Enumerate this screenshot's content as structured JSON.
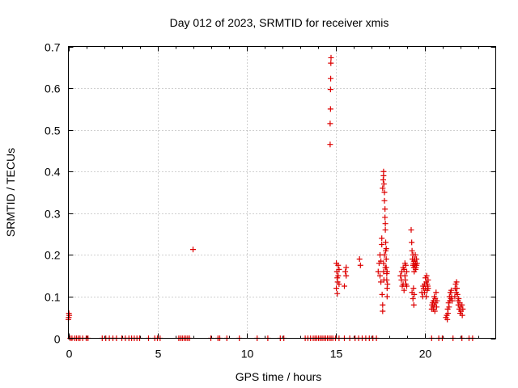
{
  "chart_data": {
    "type": "scatter",
    "title": "Day 012 of 2023, SRMTID for receiver xmis",
    "xlabel": "GPS time / hours",
    "ylabel": "SRMTID / TECUs",
    "xlim": [
      0,
      24
    ],
    "ylim": [
      0,
      0.7
    ],
    "xticks": [
      0,
      5,
      10,
      15,
      20
    ],
    "xtick_labels": [
      "0",
      "5",
      "10",
      "15",
      "20"
    ],
    "yticks": [
      0,
      0.1,
      0.2,
      0.3,
      0.4,
      0.5,
      0.6,
      0.7
    ],
    "ytick_labels": [
      "0",
      "0.1",
      "0.2",
      "0.3",
      "0.4",
      "0.5",
      "0.6",
      "0.7"
    ],
    "grid": true,
    "marker": "+",
    "color": "#dd0000",
    "series": [
      {
        "name": "SRMTID",
        "points": [
          [
            0.0,
            0.045
          ],
          [
            0.02,
            0.05
          ],
          [
            0.03,
            0.06
          ],
          [
            0.05,
            0.055
          ],
          [
            0.1,
            0.0
          ],
          [
            0.2,
            0.0
          ],
          [
            0.35,
            0.0
          ],
          [
            0.45,
            0.0
          ],
          [
            0.55,
            0.0
          ],
          [
            0.65,
            0.0
          ],
          [
            0.8,
            0.0
          ],
          [
            1.0,
            0.0
          ],
          [
            1.1,
            0.0
          ],
          [
            1.9,
            0.0
          ],
          [
            2.1,
            0.0
          ],
          [
            2.3,
            0.0
          ],
          [
            2.5,
            0.0
          ],
          [
            2.7,
            0.0
          ],
          [
            3.0,
            0.0
          ],
          [
            3.2,
            0.0
          ],
          [
            3.4,
            0.0
          ],
          [
            3.55,
            0.0
          ],
          [
            3.7,
            0.0
          ],
          [
            3.85,
            0.0
          ],
          [
            4.0,
            0.0
          ],
          [
            4.5,
            0.0
          ],
          [
            4.85,
            0.0
          ],
          [
            5.0,
            0.0
          ],
          [
            5.15,
            0.0
          ],
          [
            6.2,
            0.0
          ],
          [
            6.3,
            0.0
          ],
          [
            6.4,
            0.0
          ],
          [
            6.5,
            0.0
          ],
          [
            6.6,
            0.0
          ],
          [
            6.7,
            0.0
          ],
          [
            6.8,
            0.0
          ],
          [
            7.0,
            0.213
          ],
          [
            8.0,
            0.0
          ],
          [
            8.4,
            0.0
          ],
          [
            8.5,
            0.0
          ],
          [
            8.9,
            0.0
          ],
          [
            9.6,
            0.0
          ],
          [
            10.6,
            0.0
          ],
          [
            11.2,
            0.0
          ],
          [
            11.9,
            0.0
          ],
          [
            12.1,
            0.0
          ],
          [
            13.3,
            0.0
          ],
          [
            13.45,
            0.0
          ],
          [
            13.6,
            0.0
          ],
          [
            13.75,
            0.0
          ],
          [
            13.85,
            0.0
          ],
          [
            13.95,
            0.0
          ],
          [
            14.05,
            0.0
          ],
          [
            14.15,
            0.0
          ],
          [
            14.25,
            0.0
          ],
          [
            14.35,
            0.0
          ],
          [
            14.45,
            0.0
          ],
          [
            14.55,
            0.0
          ],
          [
            14.65,
            0.0
          ],
          [
            14.75,
            0.0
          ],
          [
            14.85,
            0.0
          ],
          [
            15.0,
            0.0
          ],
          [
            15.2,
            0.0
          ],
          [
            15.5,
            0.0
          ],
          [
            15.8,
            0.0
          ],
          [
            14.7,
            0.465
          ],
          [
            14.7,
            0.515
          ],
          [
            14.72,
            0.55
          ],
          [
            14.72,
            0.597
          ],
          [
            14.73,
            0.623
          ],
          [
            14.74,
            0.66
          ],
          [
            14.75,
            0.673
          ],
          [
            15.05,
            0.18
          ],
          [
            15.08,
            0.16
          ],
          [
            15.1,
            0.145
          ],
          [
            15.12,
            0.135
          ],
          [
            15.05,
            0.12
          ],
          [
            15.1,
            0.107
          ],
          [
            15.15,
            0.175
          ],
          [
            15.2,
            0.165
          ],
          [
            15.15,
            0.15
          ],
          [
            15.2,
            0.13
          ],
          [
            15.55,
            0.16
          ],
          [
            15.6,
            0.15
          ],
          [
            15.5,
            0.125
          ],
          [
            15.6,
            0.17
          ],
          [
            16.1,
            0.0
          ],
          [
            16.3,
            0.0
          ],
          [
            16.5,
            0.0
          ],
          [
            16.7,
            0.0
          ],
          [
            16.9,
            0.0
          ],
          [
            17.1,
            0.0
          ],
          [
            17.3,
            0.0
          ],
          [
            16.35,
            0.19
          ],
          [
            16.4,
            0.175
          ],
          [
            17.4,
            0.16
          ],
          [
            17.45,
            0.18
          ],
          [
            17.5,
            0.2
          ],
          [
            17.5,
            0.15
          ],
          [
            17.55,
            0.135
          ],
          [
            17.55,
            0.185
          ],
          [
            17.6,
            0.24
          ],
          [
            17.6,
            0.225
          ],
          [
            17.62,
            0.105
          ],
          [
            17.65,
            0.065
          ],
          [
            17.65,
            0.08
          ],
          [
            17.65,
            0.36
          ],
          [
            17.68,
            0.38
          ],
          [
            17.7,
            0.39
          ],
          [
            17.7,
            0.4
          ],
          [
            17.72,
            0.37
          ],
          [
            17.75,
            0.35
          ],
          [
            17.75,
            0.33
          ],
          [
            17.78,
            0.31
          ],
          [
            17.78,
            0.29
          ],
          [
            17.8,
            0.275
          ],
          [
            17.8,
            0.26
          ],
          [
            17.82,
            0.23
          ],
          [
            17.82,
            0.21
          ],
          [
            17.85,
            0.19
          ],
          [
            17.85,
            0.17
          ],
          [
            17.88,
            0.155
          ],
          [
            17.88,
            0.14
          ],
          [
            17.9,
            0.12
          ],
          [
            17.9,
            0.1
          ],
          [
            17.75,
            0.2
          ],
          [
            17.7,
            0.18
          ],
          [
            17.8,
            0.17
          ],
          [
            17.85,
            0.215
          ],
          [
            17.9,
            0.16
          ],
          [
            17.92,
            0.13
          ],
          [
            17.7,
            0.16
          ],
          [
            17.72,
            0.14
          ],
          [
            18.65,
            0.15
          ],
          [
            18.7,
            0.14
          ],
          [
            18.72,
            0.16
          ],
          [
            18.75,
            0.125
          ],
          [
            18.8,
            0.13
          ],
          [
            18.8,
            0.17
          ],
          [
            18.85,
            0.165
          ],
          [
            18.85,
            0.115
          ],
          [
            18.9,
            0.18
          ],
          [
            18.9,
            0.15
          ],
          [
            18.92,
            0.14
          ],
          [
            18.95,
            0.175
          ],
          [
            18.95,
            0.13
          ],
          [
            19.0,
            0.16
          ],
          [
            19.0,
            0.125
          ],
          [
            19.25,
            0.26
          ],
          [
            19.28,
            0.23
          ],
          [
            19.3,
            0.21
          ],
          [
            19.32,
            0.19
          ],
          [
            19.35,
            0.175
          ],
          [
            19.35,
            0.2
          ],
          [
            19.38,
            0.18
          ],
          [
            19.4,
            0.17
          ],
          [
            19.4,
            0.185
          ],
          [
            19.42,
            0.16
          ],
          [
            19.45,
            0.175
          ],
          [
            19.45,
            0.19
          ],
          [
            19.48,
            0.2
          ],
          [
            19.5,
            0.18
          ],
          [
            19.5,
            0.165
          ],
          [
            19.52,
            0.17
          ],
          [
            19.55,
            0.19
          ],
          [
            19.55,
            0.175
          ],
          [
            19.58,
            0.18
          ],
          [
            19.3,
            0.11
          ],
          [
            19.35,
            0.095
          ],
          [
            19.4,
            0.08
          ],
          [
            19.38,
            0.12
          ],
          [
            19.42,
            0.105
          ],
          [
            19.85,
            0.11
          ],
          [
            19.9,
            0.1
          ],
          [
            19.92,
            0.125
          ],
          [
            19.95,
            0.12
          ],
          [
            20.0,
            0.13
          ],
          [
            20.0,
            0.11
          ],
          [
            20.05,
            0.145
          ],
          [
            20.05,
            0.12
          ],
          [
            20.1,
            0.135
          ],
          [
            20.1,
            0.1
          ],
          [
            20.12,
            0.15
          ],
          [
            20.15,
            0.13
          ],
          [
            20.15,
            0.115
          ],
          [
            20.18,
            0.125
          ],
          [
            20.2,
            0.14
          ],
          [
            20.2,
            0.12
          ],
          [
            20.4,
            0.07
          ],
          [
            20.42,
            0.08
          ],
          [
            20.45,
            0.085
          ],
          [
            20.48,
            0.075
          ],
          [
            20.5,
            0.09
          ],
          [
            20.5,
            0.07
          ],
          [
            20.55,
            0.1
          ],
          [
            20.55,
            0.08
          ],
          [
            20.58,
            0.065
          ],
          [
            20.6,
            0.095
          ],
          [
            20.62,
            0.085
          ],
          [
            20.65,
            0.11
          ],
          [
            20.68,
            0.075
          ],
          [
            20.7,
            0.09
          ],
          [
            20.4,
            0.0
          ],
          [
            20.8,
            0.0
          ],
          [
            21.0,
            0.0
          ],
          [
            21.2,
            0.05
          ],
          [
            21.25,
            0.055
          ],
          [
            21.28,
            0.045
          ],
          [
            21.3,
            0.07
          ],
          [
            21.32,
            0.06
          ],
          [
            21.35,
            0.085
          ],
          [
            21.38,
            0.075
          ],
          [
            21.4,
            0.1
          ],
          [
            21.42,
            0.09
          ],
          [
            21.45,
            0.11
          ],
          [
            21.48,
            0.095
          ],
          [
            21.5,
            0.115
          ],
          [
            21.52,
            0.1
          ],
          [
            21.55,
            0.09
          ],
          [
            21.7,
            0.1
          ],
          [
            21.72,
            0.12
          ],
          [
            21.75,
            0.13
          ],
          [
            21.78,
            0.11
          ],
          [
            21.8,
            0.135
          ],
          [
            21.82,
            0.12
          ],
          [
            21.85,
            0.105
          ],
          [
            21.88,
            0.09
          ],
          [
            21.9,
            0.08
          ],
          [
            21.92,
            0.095
          ],
          [
            21.95,
            0.07
          ],
          [
            21.98,
            0.085
          ],
          [
            22.0,
            0.06
          ],
          [
            22.02,
            0.075
          ],
          [
            22.05,
            0.065
          ],
          [
            22.1,
            0.08
          ],
          [
            22.12,
            0.055
          ],
          [
            22.15,
            0.07
          ],
          [
            21.6,
            0.0
          ],
          [
            22.1,
            0.0
          ],
          [
            22.5,
            0.0
          ],
          [
            22.7,
            0.0
          ]
        ]
      }
    ]
  }
}
